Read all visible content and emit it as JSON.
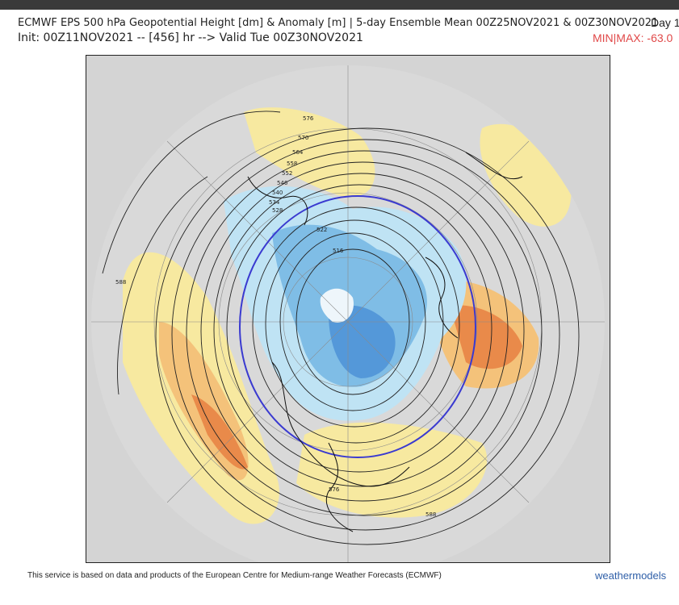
{
  "header": {
    "line1": "ECMWF EPS 500 hPa Geopotential Height [dm] & Anomaly [m] | 5-day Ensemble Mean 00Z25NOV2021 & 00Z30NOV2021",
    "line2": "Init: 00Z11NOV2021 -- [456] hr --> Valid Tue 00Z30NOV2021",
    "day": "Day 1",
    "minmax": "MIN|MAX: -63.0"
  },
  "map": {
    "contour_labels": [
      "576",
      "570",
      "564",
      "558",
      "552",
      "546",
      "540",
      "534",
      "528",
      "522",
      "516",
      "588",
      "576",
      "588"
    ],
    "colors": {
      "land_gray": "#d4d4d4",
      "positive_light": "#f7e9a0",
      "positive_mid": "#f4c27a",
      "positive_strong": "#e98a4a",
      "negative_light": "#bfe3f4",
      "negative_mid": "#7fbde6",
      "negative_strong": "#4a8fd6",
      "contour": "#222222",
      "highlight_contour": "#3a3ad0"
    }
  },
  "footer": {
    "text": "This service is based on data and products of the European Centre for Medium-range Weather Forecasts (ECMWF)",
    "brand": "weathermodels"
  }
}
